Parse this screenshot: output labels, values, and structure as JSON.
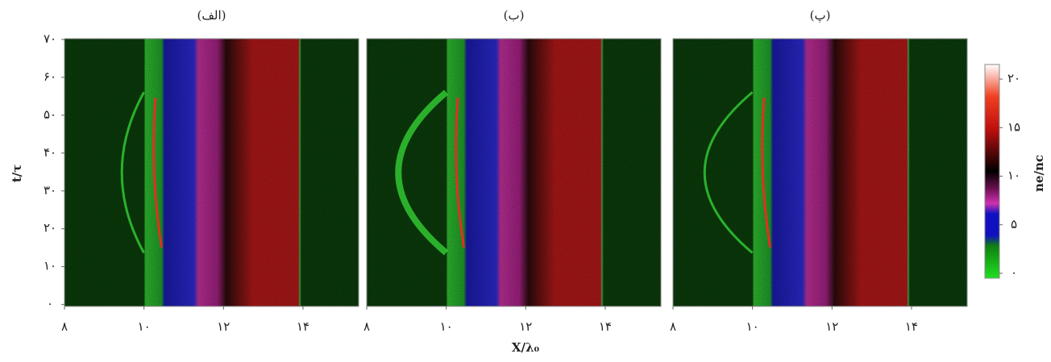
{
  "figure": {
    "xlabel": "X/λ₀",
    "ylabel": "t/τ",
    "colorbar": {
      "label": "ne/nc",
      "ylim": [
        -0.5,
        21.5
      ],
      "yticks": [
        {
          "value": 0,
          "label": "۰"
        },
        {
          "value": 5,
          "label": "۵"
        },
        {
          "value": 10,
          "label": "۱۰"
        },
        {
          "value": 15,
          "label": "۱۵"
        },
        {
          "value": 20,
          "label": "۲۰"
        }
      ]
    }
  },
  "chart_data": [
    {
      "type": "heatmap",
      "title": "(الف)",
      "xlim": [
        8,
        15.4
      ],
      "ylim": [
        -0.5,
        70.2
      ],
      "xticks": [
        {
          "value": 8,
          "label": "۸"
        },
        {
          "value": 10,
          "label": "۱۰"
        },
        {
          "value": 12,
          "label": "۱۲"
        },
        {
          "value": 14,
          "label": "۱۴"
        }
      ],
      "yticks": [
        {
          "value": 0,
          "label": "۰"
        },
        {
          "value": 10,
          "label": "۱۰"
        },
        {
          "value": 20,
          "label": "۲۰"
        },
        {
          "value": 30,
          "label": "۳۰"
        },
        {
          "value": 40,
          "label": "۴۰"
        },
        {
          "value": 50,
          "label": "۵۰"
        },
        {
          "value": 60,
          "label": "۶۰"
        },
        {
          "value": 70,
          "label": "۷۰"
        }
      ]
    },
    {
      "type": "heatmap",
      "title": "(ب)",
      "xlim": [
        8,
        15.4
      ],
      "ylim": [
        -0.5,
        70.2
      ],
      "xticks": [
        {
          "value": 8,
          "label": "۸"
        },
        {
          "value": 10,
          "label": "۱۰"
        },
        {
          "value": 12,
          "label": "۱۲"
        },
        {
          "value": 14,
          "label": "۱۴"
        }
      ]
    },
    {
      "type": "heatmap",
      "title": "(پ)",
      "xlim": [
        8,
        15.4
      ],
      "ylim": [
        -0.5,
        70.2
      ],
      "xticks": [
        {
          "value": 8,
          "label": "۸"
        },
        {
          "value": 10,
          "label": "۱۰"
        },
        {
          "value": 12,
          "label": "۱۲"
        },
        {
          "value": 14,
          "label": "۱۴"
        }
      ]
    }
  ]
}
